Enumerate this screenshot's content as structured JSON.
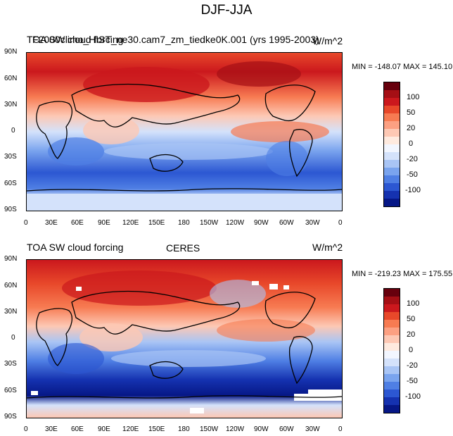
{
  "figure": {
    "title": "DJF-JJA"
  },
  "panels": [
    {
      "left_title": "TOA SW cloud forcing",
      "center_title": "F2000climo_HIST_ne30.cam7_zm_tiedke0K.001 (yrs 1995-2003)",
      "right_title": "W/m^2",
      "min_max": "MIN = -148.07 MAX = 145.10",
      "has_missing_data": false
    },
    {
      "left_title": "TOA SW cloud forcing",
      "center_title": "CERES",
      "right_title": "W/m^2",
      "min_max": "MIN = -219.23 MAX = 175.55",
      "has_missing_data": true
    }
  ],
  "axes": {
    "lat_labels": [
      "90N",
      "60N",
      "30N",
      "0",
      "30S",
      "60S",
      "90S"
    ],
    "lon_labels": [
      "0",
      "30E",
      "60E",
      "90E",
      "120E",
      "150E",
      "180",
      "150W",
      "120W",
      "90W",
      "60W",
      "30W",
      "0"
    ]
  },
  "colorbar": {
    "labels": [
      "100",
      "50",
      "20",
      "0",
      "-20",
      "-50",
      "-100"
    ],
    "colors": [
      "#67000d",
      "#a50f15",
      "#cb181d",
      "#e8482a",
      "#f77b52",
      "#fca082",
      "#fdc8b4",
      "#feeadf",
      "#f2f6ff",
      "#d4e2fb",
      "#a9c5f5",
      "#7aa4ee",
      "#4f7fe4",
      "#2c57d2",
      "#1532b0",
      "#061786"
    ]
  }
}
